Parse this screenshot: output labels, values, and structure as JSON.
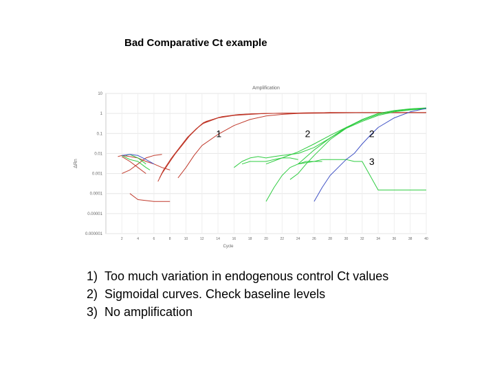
{
  "slide": {
    "title": "Bad Comparative Ct example",
    "notes": [
      {
        "num": "1)",
        "text": "Too much variation in endogenous control Ct values"
      },
      {
        "num": "2)",
        "text": "Sigmoidal curves. Check baseline levels"
      },
      {
        "num": "3)",
        "text": "No amplification"
      }
    ]
  },
  "chart_data": {
    "type": "line",
    "title": "Amplification",
    "xlabel": "Cycle",
    "ylabel": "ΔRn",
    "xlim": [
      0,
      40
    ],
    "ylim": [
      1e-06,
      10
    ],
    "log_y": true,
    "grid": true,
    "x_ticks": [
      "2",
      "4",
      "6",
      "8",
      "10",
      "12",
      "14",
      "16",
      "18",
      "20",
      "22",
      "24",
      "26",
      "28",
      "30",
      "32",
      "34",
      "36",
      "38",
      "40"
    ],
    "y_ticks": [
      "10",
      "1",
      "0.1",
      "0.01",
      "0.001",
      "0.0001",
      "0.00001",
      "0.000001"
    ],
    "annotations": [
      {
        "text": "1",
        "x": 14.1,
        "y": 0.1
      },
      {
        "text": "2",
        "x": 25.2,
        "y": 0.1
      },
      {
        "text": "2",
        "x": 33.2,
        "y": 0.1
      },
      {
        "text": "3",
        "x": 33.2,
        "y": 0.004
      }
    ],
    "series": [
      {
        "color": "#c0392b",
        "x": [
          6.5,
          7,
          8,
          9,
          10,
          11,
          12,
          14,
          16,
          18,
          20,
          24,
          28,
          32,
          36,
          40
        ],
        "y": [
          0.0004,
          0.001,
          0.004,
          0.015,
          0.05,
          0.13,
          0.3,
          0.6,
          0.8,
          0.9,
          1.0,
          1.05,
          1.1,
          1.1,
          1.1,
          1.1
        ]
      },
      {
        "color": "#c0392b",
        "x": [
          6.7,
          7.2,
          8.2,
          9.2,
          10.2,
          11.2,
          12.2,
          14.2,
          16.2,
          18.2,
          20.2,
          24,
          28,
          32,
          36,
          40
        ],
        "y": [
          0.0006,
          0.0015,
          0.006,
          0.02,
          0.065,
          0.16,
          0.35,
          0.65,
          0.85,
          0.95,
          1.0,
          1.05,
          1.1,
          1.1,
          1.1,
          1.1
        ]
      },
      {
        "color": "#c0392b",
        "x": [
          6.9,
          7.5,
          8.5,
          9.5,
          10.5,
          11.5,
          12.5,
          14.5,
          16.5,
          18.5,
          20.5,
          24,
          28,
          32,
          36,
          40
        ],
        "y": [
          0.0009,
          0.002,
          0.008,
          0.025,
          0.08,
          0.2,
          0.4,
          0.7,
          0.88,
          0.97,
          1.0,
          1.05,
          1.1,
          1.1,
          1.1,
          1.1
        ]
      },
      {
        "color": "#c0392b",
        "x": [
          9,
          10,
          11,
          12,
          14,
          16,
          18,
          20,
          22,
          24,
          28,
          32,
          36,
          40
        ],
        "y": [
          0.0006,
          0.002,
          0.008,
          0.025,
          0.09,
          0.25,
          0.5,
          0.75,
          0.9,
          1.0,
          1.05,
          1.1,
          1.1,
          1.1
        ]
      },
      {
        "color": "#c0392b",
        "x": [
          1.5,
          2,
          3,
          4,
          5,
          6,
          7,
          8
        ],
        "y": [
          0.007,
          0.008,
          0.007,
          0.006,
          0.004,
          0.003,
          0.002,
          0.0015
        ]
      },
      {
        "color": "#c0392b",
        "x": [
          2,
          3,
          4,
          5,
          6,
          7
        ],
        "y": [
          0.001,
          0.0015,
          0.003,
          0.006,
          0.008,
          0.009
        ]
      },
      {
        "color": "#c0392b",
        "x": [
          3,
          4,
          6,
          8
        ],
        "y": [
          0.0001,
          5e-05,
          4e-05,
          4e-05
        ]
      },
      {
        "color": "#c0392b",
        "x": [
          2,
          3,
          4,
          5
        ],
        "y": [
          0.007,
          0.004,
          0.002,
          0.001
        ]
      },
      {
        "color": "#2ecc40",
        "x": [
          20,
          22,
          24,
          26,
          28,
          30,
          32,
          34,
          36,
          38,
          40
        ],
        "y": [
          0.003,
          0.006,
          0.012,
          0.03,
          0.08,
          0.2,
          0.45,
          0.9,
          1.3,
          1.6,
          1.8
        ]
      },
      {
        "color": "#2ecc40",
        "x": [
          23,
          24,
          25,
          26,
          27,
          28,
          30,
          32,
          34,
          36,
          38,
          40
        ],
        "y": [
          0.0005,
          0.001,
          0.003,
          0.008,
          0.02,
          0.05,
          0.18,
          0.5,
          1.0,
          1.4,
          1.7,
          1.9
        ]
      },
      {
        "color": "#2ecc40",
        "x": [
          24,
          26,
          28,
          30,
          32,
          34,
          36,
          38,
          40
        ],
        "y": [
          0.003,
          0.015,
          0.06,
          0.18,
          0.4,
          0.8,
          1.2,
          1.5,
          1.7
        ]
      },
      {
        "color": "#2ecc40",
        "x": [
          24,
          25,
          26,
          27,
          28,
          29,
          30,
          31,
          32,
          34,
          36,
          38,
          40
        ],
        "y": [
          0.003,
          0.004,
          0.004,
          0.005,
          0.005,
          0.005,
          0.005,
          0.004,
          0.004,
          0.00015,
          0.00015,
          0.00015,
          0.00015
        ]
      },
      {
        "color": "#2ecc40",
        "x": [
          16,
          17,
          18,
          19,
          20,
          21,
          22,
          24,
          26,
          28,
          30,
          32
        ],
        "y": [
          0.002,
          0.004,
          0.006,
          0.007,
          0.006,
          0.007,
          0.008,
          0.01,
          0.02,
          0.06,
          0.2,
          0.5
        ]
      },
      {
        "color": "#2ecc40",
        "x": [
          20,
          21,
          22,
          23,
          24,
          25,
          26,
          27
        ],
        "y": [
          4e-05,
          0.0002,
          0.0008,
          0.002,
          0.003,
          0.0035,
          0.004,
          0.004
        ]
      },
      {
        "color": "#2ecc40",
        "x": [
          17,
          18,
          19,
          20,
          21,
          22,
          23,
          24
        ],
        "y": [
          0.003,
          0.004,
          0.004,
          0.004,
          0.005,
          0.006,
          0.006,
          0.005
        ]
      },
      {
        "color": "#2ecc40",
        "x": [
          2.5,
          3,
          4,
          5
        ],
        "y": [
          0.008,
          0.009,
          0.006,
          0.003
        ]
      },
      {
        "color": "#2ecc40",
        "x": [
          2,
          3,
          4,
          5,
          5.5
        ],
        "y": [
          0.008,
          0.005,
          0.004,
          0.002,
          0.0015
        ]
      },
      {
        "color": "#3f51c5",
        "x": [
          26,
          27,
          28,
          29,
          30,
          31,
          32,
          33,
          34,
          36,
          38,
          40
        ],
        "y": [
          4e-05,
          0.0002,
          0.0008,
          0.002,
          0.005,
          0.01,
          0.03,
          0.08,
          0.2,
          0.6,
          1.2,
          1.8
        ]
      },
      {
        "color": "#3f51c5",
        "x": [
          2,
          3,
          4,
          5,
          6
        ],
        "y": [
          0.008,
          0.009,
          0.008,
          0.005,
          0.003
        ]
      }
    ]
  }
}
